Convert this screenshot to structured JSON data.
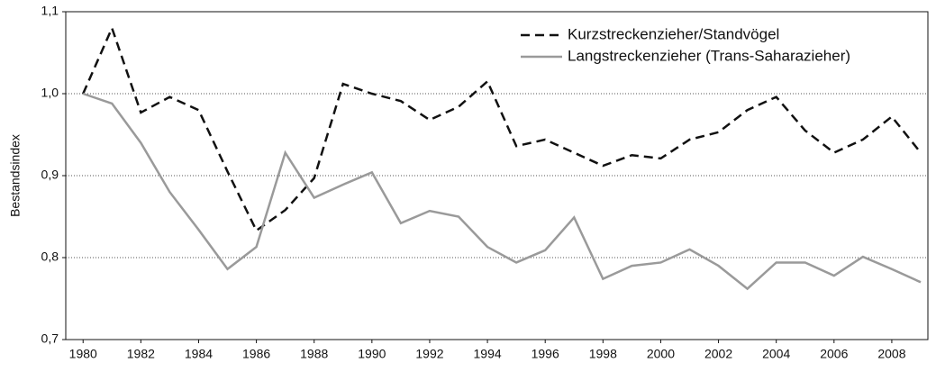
{
  "chart_data": {
    "type": "line",
    "y_label": "Bestandsindex",
    "x": [
      1980,
      1981,
      1982,
      1983,
      1984,
      1985,
      1986,
      1987,
      1988,
      1989,
      1990,
      1991,
      1992,
      1993,
      1994,
      1995,
      1996,
      1997,
      1998,
      1999,
      2000,
      2001,
      2002,
      2003,
      2004,
      2005,
      2006,
      2007,
      2008,
      2009
    ],
    "series": [
      {
        "name": "Kurzstreckenzieher/Standvögel",
        "color": "#111111",
        "dash": true,
        "values": [
          1.0,
          1.08,
          0.977,
          0.996,
          0.98,
          0.905,
          0.833,
          0.858,
          0.897,
          1.012,
          1.0,
          0.991,
          0.968,
          0.984,
          1.015,
          0.936,
          0.944,
          0.928,
          0.912,
          0.925,
          0.921,
          0.944,
          0.953,
          0.98,
          0.996,
          0.955,
          0.928,
          0.944,
          0.972,
          0.928
        ]
      },
      {
        "name": "Langstreckenzieher (Trans-Saharazieher)",
        "color": "#9a9a9a",
        "dash": false,
        "values": [
          1.0,
          0.988,
          0.94,
          0.88,
          0.834,
          0.786,
          0.813,
          0.928,
          0.873,
          0.889,
          0.904,
          0.842,
          0.857,
          0.85,
          0.813,
          0.794,
          0.809,
          0.849,
          0.774,
          0.79,
          0.794,
          0.81,
          0.79,
          0.762,
          0.794,
          0.794,
          0.778,
          0.801,
          0.786,
          0.77
        ]
      }
    ],
    "xlim": [
      1979.4,
      2009.25
    ],
    "xticks": [
      1980,
      1982,
      1984,
      1986,
      1988,
      1990,
      1992,
      1994,
      1996,
      1998,
      2000,
      2002,
      2004,
      2006,
      2008
    ],
    "ylim": [
      0.7,
      1.1
    ],
    "yticks": [
      {
        "value": 0.7,
        "label": "0,7"
      },
      {
        "value": 0.8,
        "label": "0,8"
      },
      {
        "value": 0.9,
        "label": "0,9"
      },
      {
        "value": 1.0,
        "label": "1,0"
      },
      {
        "value": 1.1,
        "label": "1,1"
      }
    ],
    "grid": true,
    "legend": "upper right"
  }
}
